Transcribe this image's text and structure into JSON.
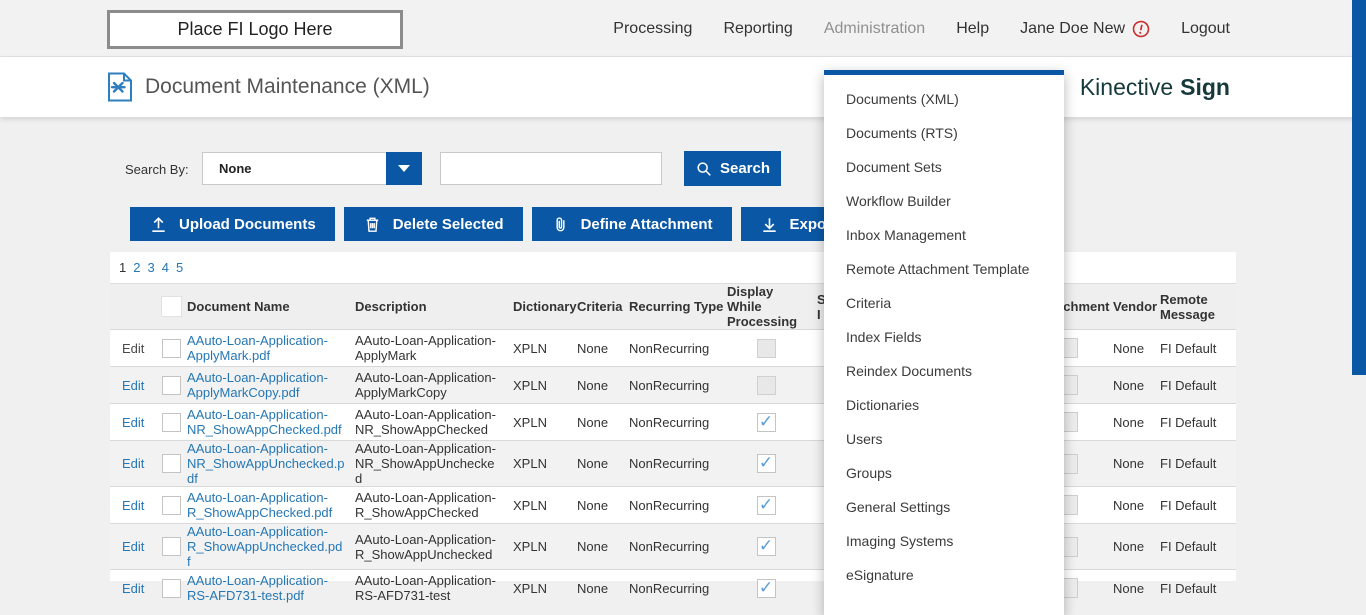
{
  "colors": {
    "accent": "#0a58a5",
    "link": "#2577b5",
    "brand": "#16393b",
    "alert": "#cb2f2f",
    "check": "#5b9bd5"
  },
  "topbar": {
    "logo_text": "Place FI Logo Here",
    "nav": [
      {
        "label": "Processing",
        "active": false,
        "alert_icon": false
      },
      {
        "label": "Reporting",
        "active": false,
        "alert_icon": false
      },
      {
        "label": "Administration",
        "active": true,
        "alert_icon": false
      },
      {
        "label": "Help",
        "active": false,
        "alert_icon": false
      },
      {
        "label": "Jane Doe New",
        "active": false,
        "alert_icon": true
      },
      {
        "label": "Logout",
        "active": false,
        "alert_icon": false
      }
    ]
  },
  "header": {
    "page_title": "Document Maintenance (XML)",
    "brand_name": "Kinective",
    "brand_product": "Sign"
  },
  "menu": {
    "items": [
      "Documents (XML)",
      "Documents (RTS)",
      "Document Sets",
      "Workflow Builder",
      "Inbox Management",
      "Remote Attachment Template",
      "Criteria",
      "Index Fields",
      "Reindex Documents",
      "Dictionaries",
      "Users",
      "Groups",
      "General Settings",
      "Imaging Systems",
      "eSignature"
    ]
  },
  "search": {
    "label": "Search By:",
    "selected_option": "None",
    "input_value": "",
    "button_label": "Search"
  },
  "toolbar": {
    "upload_label": "Upload Documents",
    "delete_label": "Delete Selected",
    "define_attachment_label": "Define Attachment",
    "export_label": "Export"
  },
  "pagination": {
    "pages": [
      "1",
      "2",
      "3",
      "4",
      "5"
    ],
    "current_index": 0
  },
  "table": {
    "edit_label": "Edit",
    "columns": {
      "document_name": "Document Name",
      "description": "Description",
      "dictionary": "Dictionary",
      "criteria": "Criteria",
      "recurring_type": "Recurring Type",
      "display_while_processing": "Display While Processing",
      "occluded_line1": "S",
      "occluded_line2": "I",
      "attachment": "Attachment",
      "vendor": "Vendor",
      "remote_message": "Remote Message"
    },
    "rows": [
      {
        "name": "AAuto-Loan-Application-ApplyMark.pdf",
        "description": "AAuto-Loan-Application-ApplyMark",
        "dictionary": "XPLN",
        "criteria": "None",
        "recurring_type": "NonRecurring",
        "display_while_processing": false,
        "selected": false,
        "vendor": "None",
        "remote_message": "FI Default"
      },
      {
        "name": "AAuto-Loan-Application-ApplyMarkCopy.pdf",
        "description": "AAuto-Loan-Application-ApplyMarkCopy",
        "dictionary": "XPLN",
        "criteria": "None",
        "recurring_type": "NonRecurring",
        "display_while_processing": false,
        "selected": false,
        "vendor": "None",
        "remote_message": "FI Default"
      },
      {
        "name": "AAuto-Loan-Application-NR_ShowAppChecked.pdf",
        "description": "AAuto-Loan-Application-NR_ShowAppChecked",
        "dictionary": "XPLN",
        "criteria": "None",
        "recurring_type": "NonRecurring",
        "display_while_processing": true,
        "selected": false,
        "vendor": "None",
        "remote_message": "FI Default"
      },
      {
        "name": "AAuto-Loan-Application-NR_ShowAppUnchecked.pdf",
        "description": "AAuto-Loan-Application-NR_ShowAppUnchecked",
        "dictionary": "XPLN",
        "criteria": "None",
        "recurring_type": "NonRecurring",
        "display_while_processing": true,
        "selected": false,
        "vendor": "None",
        "remote_message": "FI Default"
      },
      {
        "name": "AAuto-Loan-Application-R_ShowAppChecked.pdf",
        "description": "AAuto-Loan-Application-R_ShowAppChecked",
        "dictionary": "XPLN",
        "criteria": "None",
        "recurring_type": "NonRecurring",
        "display_while_processing": true,
        "selected": false,
        "vendor": "None",
        "remote_message": "FI Default"
      },
      {
        "name": "AAuto-Loan-Application-R_ShowAppUnchecked.pdf",
        "description": "AAuto-Loan-Application-R_ShowAppUnchecked",
        "dictionary": "XPLN",
        "criteria": "None",
        "recurring_type": "NonRecurring",
        "display_while_processing": true,
        "selected": false,
        "vendor": "None",
        "remote_message": "FI Default"
      },
      {
        "name": "AAuto-Loan-Application-RS-AFD731-test.pdf",
        "description": "AAuto-Loan-Application-RS-AFD731-test",
        "dictionary": "XPLN",
        "criteria": "None",
        "recurring_type": "NonRecurring",
        "display_while_processing": true,
        "selected": false,
        "vendor": "None",
        "remote_message": "FI Default"
      }
    ]
  }
}
